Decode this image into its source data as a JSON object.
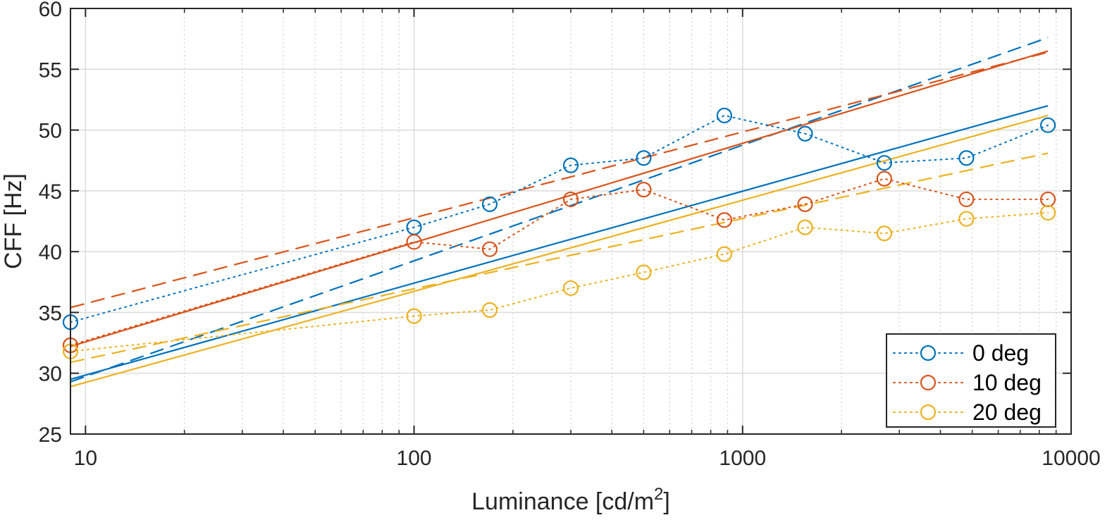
{
  "chart_data": {
    "type": "line",
    "xscale": "log",
    "xlim": [
      9,
      10000
    ],
    "ylim": [
      25,
      60
    ],
    "grid": true,
    "minor_grid_x": true,
    "legend_position": "bottom-right",
    "xlabel": "Luminance [cd/m",
    "xlabel_sup": "2",
    "xlabel_end": "]",
    "ylabel": "CFF [Hz]",
    "x_ticks": [
      10,
      100,
      1000,
      10000
    ],
    "x_tick_labels": [
      "10",
      "100",
      "1000",
      "10000"
    ],
    "y_ticks": [
      25,
      30,
      35,
      40,
      45,
      50,
      55,
      60
    ],
    "y_tick_labels": [
      "25",
      "30",
      "35",
      "40",
      "45",
      "50",
      "55",
      "60"
    ],
    "x": [
      9,
      100,
      170,
      300,
      500,
      880,
      1550,
      2700,
      4800,
      8500
    ],
    "series": [
      {
        "name": "0 deg",
        "color": "#0072BD",
        "values": [
          34.2,
          42.0,
          43.9,
          47.1,
          47.7,
          51.2,
          49.7,
          47.3,
          47.7,
          50.4
        ]
      },
      {
        "name": "10 deg",
        "color": "#D95319",
        "values": [
          32.3,
          40.8,
          40.2,
          44.3,
          45.1,
          42.6,
          43.9,
          46.0,
          44.3,
          44.3
        ]
      },
      {
        "name": "20 deg",
        "color": "#EDB120",
        "values": [
          31.8,
          34.7,
          35.2,
          37.0,
          38.3,
          39.8,
          42.0,
          41.5,
          42.7,
          43.2
        ]
      }
    ],
    "fit_lines": [
      {
        "series": "0 deg",
        "style": "solid",
        "color": "#0072BD",
        "x": [
          9,
          8500
        ],
        "y": [
          29.5,
          52.0
        ]
      },
      {
        "series": "0 deg",
        "style": "dashed",
        "color": "#0072BD",
        "x": [
          9,
          8500
        ],
        "y": [
          29.3,
          57.6
        ]
      },
      {
        "series": "10 deg",
        "style": "solid",
        "color": "#D95319",
        "x": [
          9,
          8500
        ],
        "y": [
          32.2,
          56.5
        ]
      },
      {
        "series": "10 deg",
        "style": "dashed",
        "color": "#D95319",
        "x": [
          9,
          8500
        ],
        "y": [
          35.4,
          56.4
        ]
      },
      {
        "series": "20 deg",
        "style": "solid",
        "color": "#EDB120",
        "x": [
          9,
          8500
        ],
        "y": [
          28.9,
          51.2
        ]
      },
      {
        "series": "20 deg",
        "style": "dashed",
        "color": "#EDB120",
        "x": [
          9,
          8500
        ],
        "y": [
          30.9,
          48.1
        ]
      }
    ]
  }
}
